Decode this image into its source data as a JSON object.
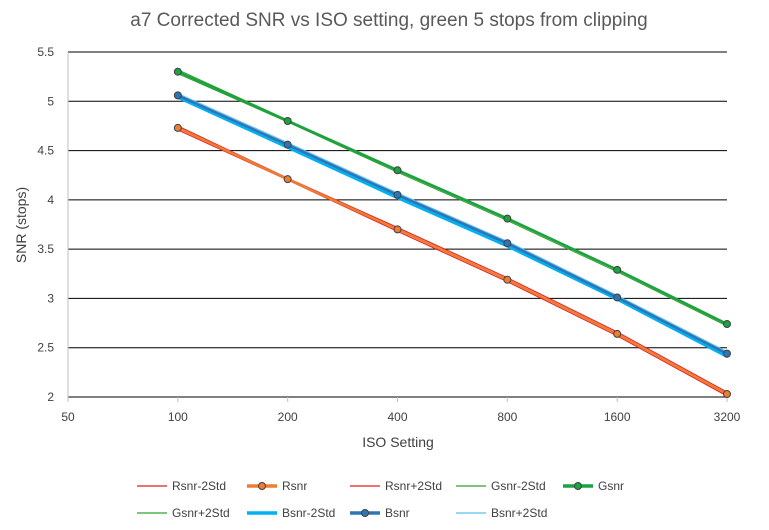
{
  "chart_data": {
    "type": "line",
    "title": "a7 Corrected SNR vs ISO setting, green 5 stops from clipping",
    "xlabel": "ISO Setting",
    "ylabel": "SNR (stops)",
    "x_scale": "log2",
    "x_ticks": [
      "50",
      "100",
      "200",
      "400",
      "800",
      "1600",
      "3200"
    ],
    "xlim": [
      50,
      3200
    ],
    "y_ticks": [
      "2",
      "2.5",
      "3",
      "3.5",
      "4",
      "4.5",
      "5",
      "5.5"
    ],
    "ylim": [
      2,
      5.5
    ],
    "grid": "horizontal",
    "legend_position": "bottom",
    "x": [
      100,
      200,
      400,
      800,
      1600,
      3200
    ],
    "series": [
      {
        "name": "Rsnr-2Std",
        "color": "#e41a1c",
        "marker": false,
        "width": 1,
        "values": [
          4.71,
          4.2,
          3.68,
          3.17,
          2.62,
          2.01
        ]
      },
      {
        "name": "Rsnr",
        "color": "#ed7d31",
        "marker": true,
        "width": 2.5,
        "values": [
          4.73,
          4.21,
          3.7,
          3.19,
          2.64,
          2.03
        ]
      },
      {
        "name": "Rsnr+2Std",
        "color": "#e41a1c",
        "marker": false,
        "width": 1,
        "values": [
          4.75,
          4.22,
          3.72,
          3.21,
          2.66,
          2.05
        ]
      },
      {
        "name": "Gsnr-2Std",
        "color": "#33a02c",
        "marker": false,
        "width": 1,
        "values": [
          5.28,
          4.79,
          4.28,
          3.79,
          3.27,
          2.72
        ]
      },
      {
        "name": "Gsnr",
        "color": "#1aa340",
        "marker": true,
        "width": 2.5,
        "values": [
          5.3,
          4.8,
          4.3,
          3.81,
          3.29,
          2.74
        ]
      },
      {
        "name": "Gsnr+2Std",
        "color": "#33a02c",
        "marker": false,
        "width": 1,
        "values": [
          5.32,
          4.81,
          4.31,
          3.82,
          3.3,
          2.75
        ]
      },
      {
        "name": "Bsnr-2Std",
        "color": "#00b0f0",
        "marker": false,
        "width": 4.5,
        "values": [
          5.05,
          4.54,
          4.03,
          3.54,
          3.0,
          2.42
        ]
      },
      {
        "name": "Bsnr",
        "color": "#2e75b6",
        "marker": true,
        "width": 2.5,
        "values": [
          5.06,
          4.56,
          4.05,
          3.56,
          3.01,
          2.44
        ]
      },
      {
        "name": "Bsnr+2Std",
        "color": "#5bc0f0",
        "marker": false,
        "width": 1,
        "values": [
          5.08,
          4.58,
          4.07,
          3.58,
          3.03,
          2.46
        ]
      }
    ]
  }
}
